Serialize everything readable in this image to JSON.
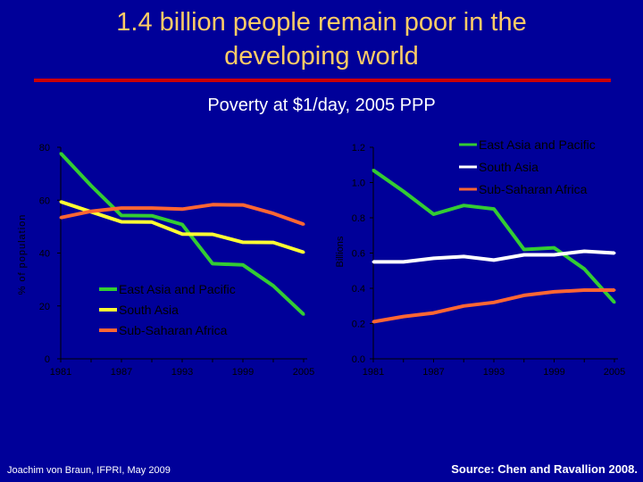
{
  "slide": {
    "title_line1": "1.4 billion people remain poor in the",
    "title_line2": "developing world",
    "subtitle": "Poverty at $1/day, 2005 PPP",
    "footer_left": "Joachim von Braun, IFPRI, May 2009",
    "footer_right": "Source: Chen and Ravallion 2008."
  },
  "colors": {
    "background": "#000099",
    "title": "#FFCC66",
    "rule": "#CC0000",
    "axis_text": "#000000",
    "axis_line": "#000000",
    "east_asia": "#33CC33",
    "south_asia_left": "#FFFF33",
    "south_asia_right": "#FFFFFF",
    "ssa": "#FF6633"
  },
  "chart_data": [
    {
      "type": "line",
      "title": "",
      "xlabel": "",
      "ylabel": "% of population",
      "ylim": [
        0,
        80
      ],
      "yticks": [
        0,
        20,
        40,
        60,
        80
      ],
      "x": [
        1981,
        1984,
        1987,
        1990,
        1993,
        1996,
        1999,
        2002,
        2005
      ],
      "xtick_labels": [
        "1981",
        "1987",
        "1993",
        "1999",
        "2005"
      ],
      "legend_position": "bottom-center",
      "series": [
        {
          "name": "East Asia and Pacific",
          "color": "#33CC33",
          "values": [
            77.7,
            65.5,
            54.2,
            54.1,
            50.8,
            36.0,
            35.5,
            27.6,
            16.8
          ]
        },
        {
          "name": "South Asia",
          "color": "#FFFF33",
          "values": [
            59.4,
            55.6,
            51.8,
            51.7,
            47.2,
            47.1,
            44.1,
            44.0,
            40.3
          ]
        },
        {
          "name": "Sub-Saharan Africa",
          "color": "#FF6633",
          "values": [
            53.4,
            55.8,
            57.0,
            57.0,
            56.6,
            58.3,
            58.2,
            55.0,
            50.9
          ]
        }
      ]
    },
    {
      "type": "line",
      "title": "",
      "xlabel": "",
      "ylabel": "Billions",
      "ylim": [
        0.0,
        1.2
      ],
      "yticks": [
        0.0,
        0.2,
        0.4,
        0.6,
        0.8,
        1.0,
        1.2
      ],
      "ytick_labels": [
        "0.0",
        "0.2",
        "0.4",
        "0.6",
        "0.8",
        "1.0",
        "1.2"
      ],
      "x": [
        1981,
        1984,
        1987,
        1990,
        1993,
        1996,
        1999,
        2002,
        2005
      ],
      "xtick_labels": [
        "1981",
        "1987",
        "1993",
        "1999",
        "2005"
      ],
      "legend_position": "top-right",
      "series": [
        {
          "name": "East Asia and Pacific",
          "color": "#33CC33",
          "values": [
            1.07,
            0.95,
            0.82,
            0.87,
            0.85,
            0.62,
            0.63,
            0.51,
            0.32
          ]
        },
        {
          "name": "South Asia",
          "color": "#FFFFFF",
          "values": [
            0.55,
            0.55,
            0.57,
            0.58,
            0.56,
            0.59,
            0.59,
            0.61,
            0.6
          ]
        },
        {
          "name": "Sub-Saharan Africa",
          "color": "#FF6633",
          "values": [
            0.21,
            0.24,
            0.26,
            0.3,
            0.32,
            0.36,
            0.38,
            0.39,
            0.39
          ]
        }
      ]
    }
  ]
}
